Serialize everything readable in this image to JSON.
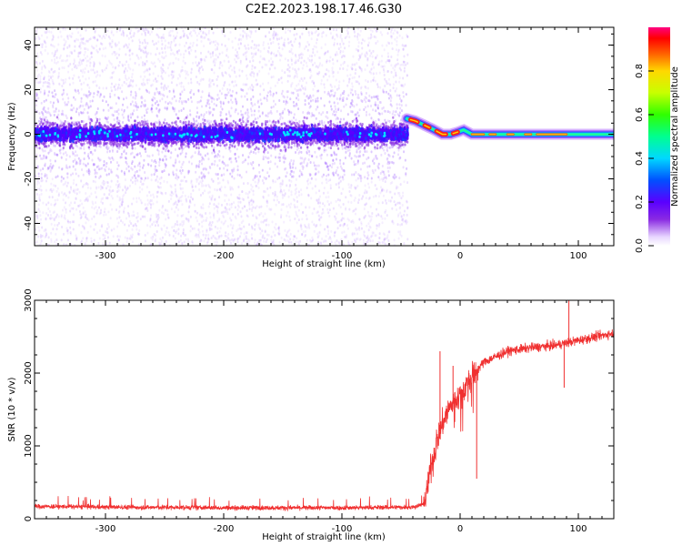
{
  "title": "C2E2.2023.198.17.46.G30",
  "chart_data": [
    {
      "type": "heatmap",
      "xlabel": "Height of straight line (km)",
      "ylabel": "Frequency (Hz)",
      "xlim": [
        -360,
        130
      ],
      "ylim": [
        -50,
        48
      ],
      "xticks": [
        -300,
        -200,
        -100,
        0,
        100
      ],
      "yticks": [
        -40,
        -20,
        0,
        20,
        40
      ],
      "colorbar": {
        "label": "Normalized spectral amplitude",
        "range": [
          0,
          1
        ],
        "ticks": [
          0.0,
          0.2,
          0.4,
          0.6,
          0.8
        ]
      },
      "features": [
        {
          "x_range": [
            -360,
            -45
          ],
          "description_values": {
            "core_half_width_hz": 6,
            "scatter_extent_hz": [
              -50,
              48
            ]
          }
        },
        {
          "x": [
            -45,
            -38,
            -30,
            -22,
            -15,
            -8,
            -2,
            3,
            10,
            130
          ],
          "freq_hz": [
            7,
            6,
            4,
            2,
            0,
            0,
            1,
            2,
            0,
            0
          ]
        }
      ]
    },
    {
      "type": "line",
      "xlabel": "Height of straight line (km)",
      "ylabel": "SNR (10 * v/v)",
      "xlim": [
        -360,
        130
      ],
      "ylim": [
        0,
        3000
      ],
      "xticks": [
        -300,
        -200,
        -100,
        0,
        100
      ],
      "yticks": [
        0,
        1000,
        2000,
        3000
      ],
      "series_color": "#f03030",
      "envelope": {
        "x": [
          -360,
          -300,
          -200,
          -100,
          -40,
          -30,
          -25,
          -20,
          -15,
          -10,
          -5,
          0,
          10,
          20,
          40,
          60,
          80,
          100,
          130
        ],
        "y": [
          170,
          160,
          150,
          150,
          160,
          200,
          700,
          1050,
          1300,
          1500,
          1600,
          1700,
          1950,
          2150,
          2300,
          2350,
          2380,
          2450,
          2550
        ]
      },
      "spikes": [
        {
          "x": 92,
          "y": 3000
        },
        {
          "x": 88,
          "y": 1800
        },
        {
          "x": 14,
          "y": 550
        },
        {
          "x": -17,
          "y": 2300
        },
        {
          "x": -6,
          "y": 2100
        }
      ]
    }
  ]
}
